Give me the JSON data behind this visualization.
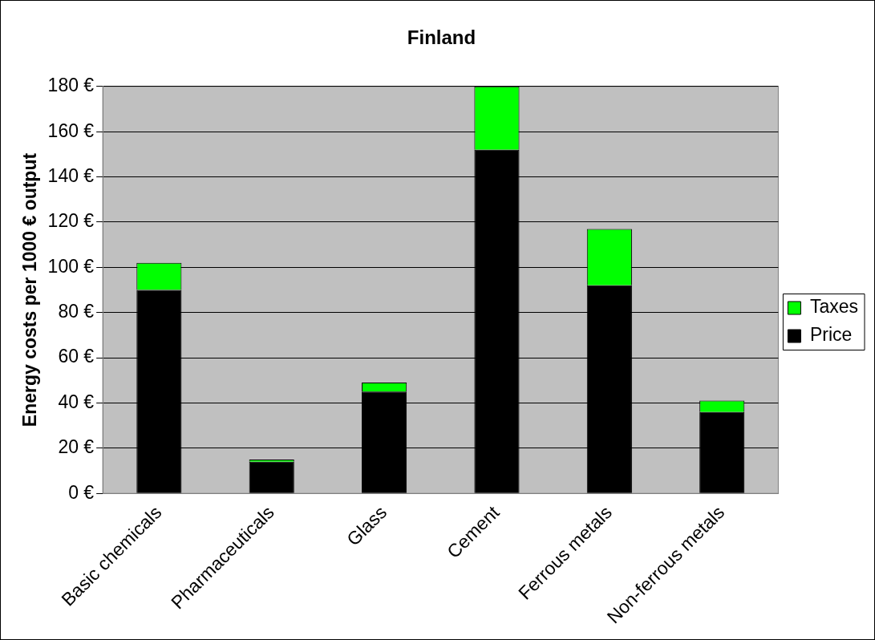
{
  "chart_data": {
    "type": "bar",
    "title": "Finland",
    "ylabel": "Energy costs per 1000 € output",
    "categories": [
      "Basic chemicals",
      "Pharmaceuticals",
      "Glass",
      "Cement",
      "Ferrous metals",
      "Non-ferrous metals"
    ],
    "stacked": true,
    "series": [
      {
        "name": "Price",
        "color": "#000000",
        "values": [
          90,
          14,
          45,
          152,
          92,
          36
        ]
      },
      {
        "name": "Taxes",
        "color": "#00ff00",
        "values": [
          12,
          1,
          4,
          28,
          25,
          5
        ]
      }
    ],
    "ylim": [
      0,
      180
    ],
    "yticks": [
      {
        "value": 0,
        "label": "0 €"
      },
      {
        "value": 20,
        "label": "20 €"
      },
      {
        "value": 40,
        "label": "40 €"
      },
      {
        "value": 60,
        "label": "60 €"
      },
      {
        "value": 80,
        "label": "80 €"
      },
      {
        "value": 100,
        "label": "100 €"
      },
      {
        "value": 120,
        "label": "120 €"
      },
      {
        "value": 140,
        "label": "140 €"
      },
      {
        "value": 160,
        "label": "160 €"
      },
      {
        "value": 180,
        "label": "180 €"
      }
    ],
    "grid": "y",
    "legend": "right"
  }
}
